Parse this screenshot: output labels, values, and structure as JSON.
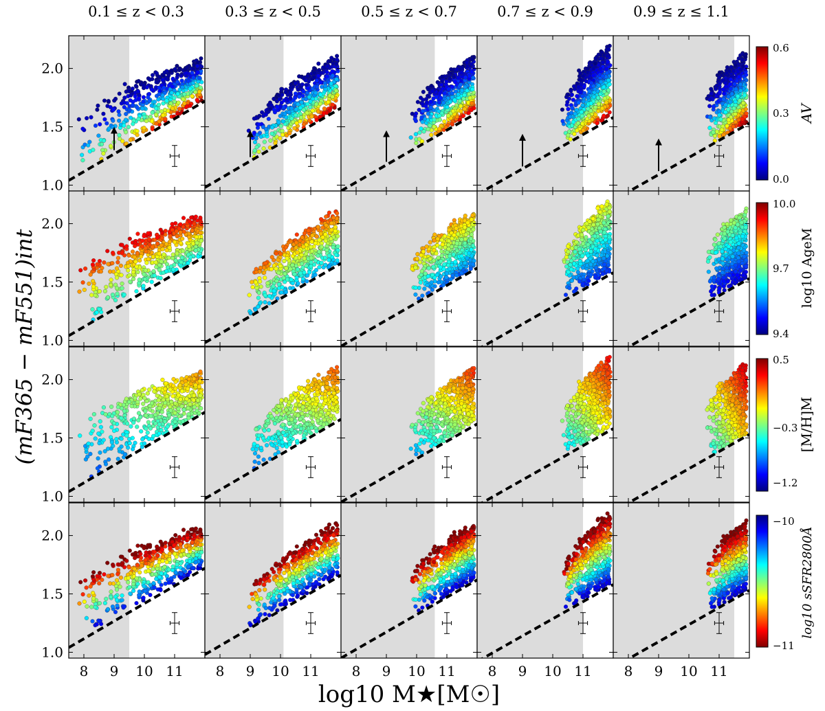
{
  "chart_data": {
    "type": "scatter",
    "title": "",
    "xlabel": "log10 M★[M☉]",
    "ylabel": "(mF365 − mF551)int",
    "xlim": [
      7.5,
      12.0
    ],
    "ylim": [
      0.95,
      2.28
    ],
    "xticks": [
      8,
      9,
      10,
      11
    ],
    "xtick_labels": [
      "8",
      "9",
      "10",
      "11"
    ],
    "yticks": [
      1.0,
      1.5,
      2.0
    ],
    "ytick_labels": [
      "1.0",
      "1.5",
      "2.0"
    ],
    "columns": [
      {
        "label": "0.1 ≤ z < 0.3",
        "shade_xmax": 9.5,
        "cut_y_at_7_5": 1.04,
        "cut_y_at_12": 1.72,
        "cloud": {
          "xmin": 7.8,
          "xmax": 11.9,
          "ytop_lo": 1.55,
          "ytop_hi": 2.07
        },
        "arrow_x": 9.0,
        "arrow_y": [
          1.3,
          1.47
        ]
      },
      {
        "label": "0.3 ≤ z < 0.5",
        "shade_xmax": 10.1,
        "cut_y_at_7_5": 0.98,
        "cut_y_at_12": 1.66,
        "cloud": {
          "xmin": 8.9,
          "xmax": 11.9,
          "ytop_lo": 1.45,
          "ytop_hi": 2.1
        },
        "arrow_x": 9.0,
        "arrow_y": [
          1.24,
          1.44
        ]
      },
      {
        "label": "0.5 ≤ z < 0.7",
        "shade_xmax": 10.6,
        "cut_y_at_7_5": 0.95,
        "cut_y_at_12": 1.62,
        "cloud": {
          "xmin": 9.8,
          "xmax": 11.9,
          "ytop_lo": 1.6,
          "ytop_hi": 2.1
        },
        "arrow_x": 9.0,
        "arrow_y": [
          1.2,
          1.44
        ]
      },
      {
        "label": "0.7 ≤ z < 0.9",
        "shade_xmax": 11.0,
        "cut_y_at_7_5": 0.92,
        "cut_y_at_12": 1.58,
        "cloud": {
          "xmin": 10.3,
          "xmax": 11.9,
          "ytop_lo": 1.65,
          "ytop_hi": 2.2
        },
        "arrow_x": 9.0,
        "arrow_y": [
          1.16,
          1.41
        ]
      },
      {
        "label": "0.9 ≤ z ≤ 1.1",
        "shade_xmax": 11.5,
        "cut_y_at_7_5": 0.87,
        "cut_y_at_12": 1.53,
        "cloud": {
          "xmin": 10.6,
          "xmax": 11.9,
          "ytop_lo": 1.75,
          "ytop_hi": 2.12
        },
        "arrow_x": 9.0,
        "arrow_y": [
          1.12,
          1.37
        ]
      }
    ],
    "error_bar": {
      "x": 11.0,
      "y": 1.25,
      "xerr": 0.15,
      "yerr": 0.09
    },
    "rows": [
      {
        "name": "A_V",
        "cbar_label": "AV",
        "colormap": "jet",
        "cbar_ticks": [
          "0.6",
          "0.3",
          "0.0"
        ],
        "mode": "dust"
      },
      {
        "name": "age",
        "cbar_label": "log10 AgeM",
        "colormap": "jet",
        "cbar_ticks": [
          "10.0",
          "9.7",
          "9.4"
        ],
        "mode": "age"
      },
      {
        "name": "metallicity",
        "cbar_label": "[M/H]M",
        "colormap": "jet",
        "cbar_ticks": [
          "0.5",
          "−0.3",
          "−1.2"
        ],
        "mode": "metal"
      },
      {
        "name": "ssfr",
        "cbar_label": "log10 sSFR2800Å",
        "colormap": "jet_r",
        "cbar_ticks": [
          "−10",
          "−11"
        ],
        "mode": "ssfr"
      }
    ]
  }
}
